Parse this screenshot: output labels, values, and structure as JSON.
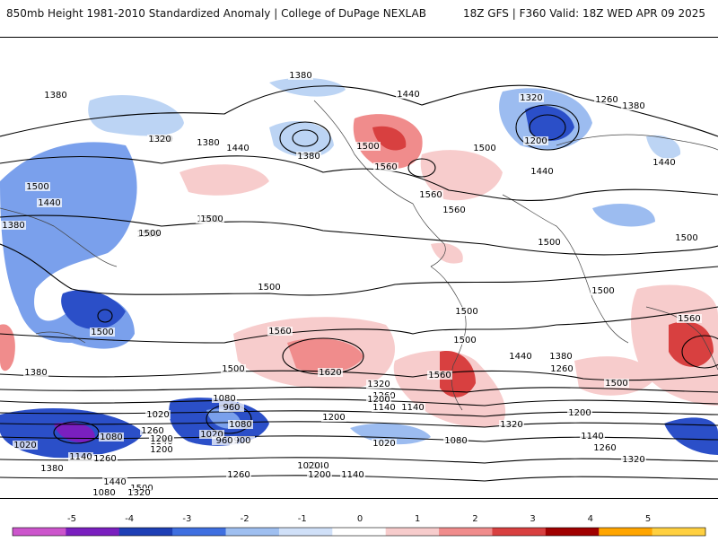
{
  "header": {
    "left": "850mb Height 1981-2010 Standardized Anomaly | College of DuPage NEXLAB",
    "right": "18Z GFS | F360 Valid: 18Z WED APR 09 2025"
  },
  "map": {
    "contour_labels": [
      "1380",
      "1380",
      "1320",
      "1380",
      "1440",
      "1380",
      "1500",
      "1440",
      "1500",
      "1500",
      "1440",
      "1380",
      "1320",
      "1500",
      "1560",
      "1560",
      "1560",
      "1500",
      "1380",
      "1260",
      "1320",
      "1200",
      "1440",
      "1440",
      "1500",
      "1500",
      "1500",
      "1500",
      "1500",
      "1500",
      "1500",
      "1560",
      "1620",
      "1500",
      "1560",
      "1440",
      "1380",
      "1260",
      "1500",
      "1380",
      "1320",
      "1260",
      "1200",
      "1140",
      "1080",
      "1020",
      "960",
      "900",
      "1260",
      "1140",
      "1080",
      "1020",
      "1200",
      "1140",
      "1200",
      "1320",
      "1200",
      "1140",
      "1260",
      "1320",
      "1020",
      "1080",
      "1140",
      "1200",
      "1260",
      "1080",
      "1500",
      "1380",
      "1440",
      "1320",
      "1260",
      "1200",
      "1140",
      "1020",
      "960",
      "1080",
      "1140",
      "1500",
      "1020",
      "1500",
      "1500",
      "1560"
    ]
  },
  "colorbar": {
    "tick_labels": [
      "-5",
      "-4",
      "-3",
      "-2",
      "-1",
      "0",
      "1",
      "2",
      "3",
      "4",
      "5"
    ],
    "colors": [
      "#cc55cc",
      "#7a1fbf",
      "#1e3fb5",
      "#3f6fe0",
      "#9fbff0",
      "#d0e0f8",
      "#ffffff",
      "#f7cccc",
      "#f08c8c",
      "#d84040",
      "#a00000",
      "#ffa500",
      "#ffd040"
    ]
  }
}
